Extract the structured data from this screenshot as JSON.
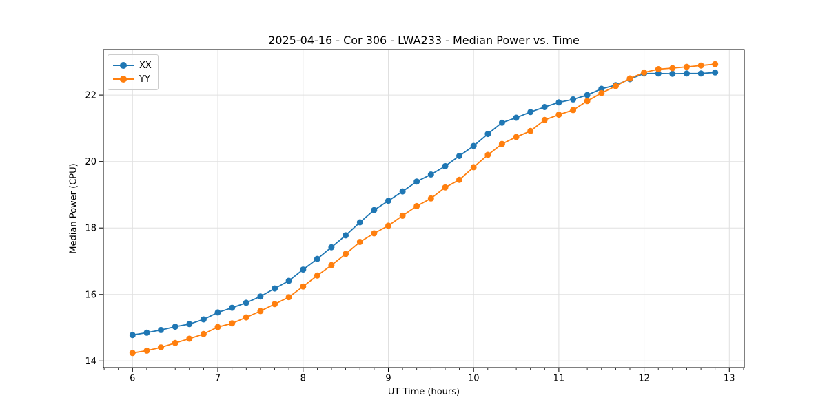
{
  "chart_data": {
    "type": "line",
    "title": "2025-04-16 - Cor 306 - LWA233 - Median Power vs. Time",
    "xlabel": "UT Time (hours)",
    "ylabel": "Median Power (CPU)",
    "xlim": [
      5.658,
      13.175
    ],
    "ylim": [
      13.8,
      23.37
    ],
    "x_major_ticks": [
      6,
      7,
      8,
      9,
      10,
      11,
      12,
      13
    ],
    "y_major_ticks": [
      14,
      16,
      18,
      20,
      22
    ],
    "x_minor_divisions_per_unit": 6,
    "grid": true,
    "grid_color": "#e0e0e0",
    "spine_color": "#000000",
    "legend_position": "upper-left",
    "marker": "circle",
    "marker_radius": 4.5,
    "line_width": 1.8,
    "x": [
      6.0,
      6.167,
      6.333,
      6.5,
      6.667,
      6.833,
      7.0,
      7.167,
      7.333,
      7.5,
      7.667,
      7.833,
      8.0,
      8.167,
      8.333,
      8.5,
      8.667,
      8.833,
      9.0,
      9.167,
      9.333,
      9.5,
      9.667,
      9.833,
      10.0,
      10.167,
      10.333,
      10.5,
      10.667,
      10.833,
      11.0,
      11.167,
      11.333,
      11.5,
      11.667,
      11.833,
      12.0,
      12.167,
      12.333,
      12.5,
      12.667,
      12.833
    ],
    "series": [
      {
        "name": "XX",
        "color": "#1f77b4",
        "values": [
          14.78,
          14.85,
          14.93,
          15.03,
          15.11,
          15.25,
          15.46,
          15.6,
          15.75,
          15.94,
          16.18,
          16.41,
          16.75,
          17.07,
          17.42,
          17.78,
          18.17,
          18.54,
          18.82,
          19.1,
          19.4,
          19.61,
          19.86,
          20.17,
          20.47,
          20.83,
          21.17,
          21.32,
          21.49,
          21.64,
          21.78,
          21.87,
          22.0,
          22.19,
          22.3,
          22.48,
          22.65,
          22.65,
          22.64,
          22.65,
          22.65,
          22.68
        ]
      },
      {
        "name": "YY",
        "color": "#ff7f0e",
        "values": [
          14.24,
          14.31,
          14.41,
          14.54,
          14.67,
          14.81,
          15.02,
          15.13,
          15.31,
          15.5,
          15.71,
          15.92,
          16.24,
          16.57,
          16.88,
          17.22,
          17.58,
          17.84,
          18.07,
          18.37,
          18.66,
          18.89,
          19.22,
          19.45,
          19.83,
          20.2,
          20.53,
          20.74,
          20.92,
          21.25,
          21.41,
          21.55,
          21.82,
          22.06,
          22.27,
          22.5,
          22.68,
          22.78,
          22.81,
          22.85,
          22.89,
          22.93
        ]
      }
    ]
  }
}
